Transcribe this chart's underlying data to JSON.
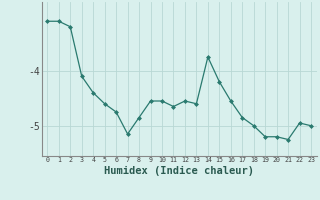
{
  "x": [
    0,
    1,
    2,
    3,
    4,
    5,
    6,
    7,
    8,
    9,
    10,
    11,
    12,
    13,
    14,
    15,
    16,
    17,
    18,
    19,
    20,
    21,
    22,
    23
  ],
  "y": [
    -3.1,
    -3.1,
    -3.2,
    -4.1,
    -4.4,
    -4.6,
    -4.75,
    -5.15,
    -4.85,
    -4.55,
    -4.55,
    -4.65,
    -4.55,
    -4.6,
    -3.75,
    -4.2,
    -4.55,
    -4.85,
    -5.0,
    -5.2,
    -5.2,
    -5.25,
    -4.95,
    -5.0
  ],
  "xlabel": "Humidex (Indice chaleur)",
  "line_color": "#2a7a6f",
  "marker": "D",
  "marker_size": 2,
  "bg_color": "#d9f0ed",
  "grid_color": "#b8d8d4",
  "ylim": [
    -5.55,
    -2.75
  ],
  "xlim": [
    -0.5,
    23.5
  ],
  "yticks": [
    -5,
    -4
  ],
  "xticks": [
    0,
    1,
    2,
    3,
    4,
    5,
    6,
    7,
    8,
    9,
    10,
    11,
    12,
    13,
    14,
    15,
    16,
    17,
    18,
    19,
    20,
    21,
    22,
    23
  ]
}
